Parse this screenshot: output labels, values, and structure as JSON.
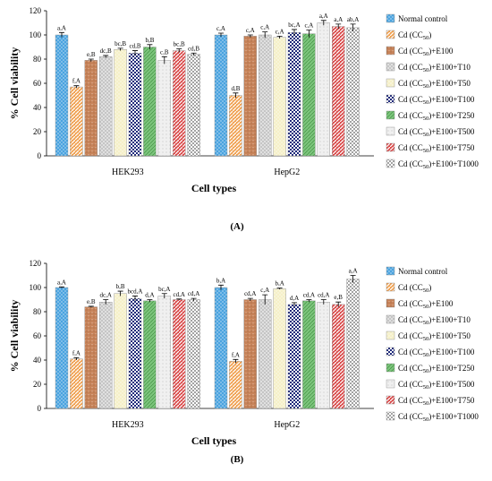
{
  "chart_data": [
    {
      "type": "bar",
      "panel_label": "(A)",
      "xlabel": "Cell types",
      "ylabel": "% Cell viability",
      "ylim": [
        0,
        120
      ],
      "yticks": [
        0,
        20,
        40,
        60,
        80,
        100,
        120
      ],
      "grid": false,
      "legend_position": "right",
      "categories": [
        "HEK293",
        "HepG2"
      ],
      "series": [
        {
          "name": "Normal control",
          "values": [
            100,
            100
          ],
          "errors": [
            2,
            1.5
          ],
          "labels": [
            "a,A",
            "c,A"
          ],
          "color": "#4aa3df",
          "pattern": "dots"
        },
        {
          "name": "Cd (CC50)",
          "values": [
            57,
            50
          ],
          "errors": [
            1,
            2
          ],
          "labels": [
            "f,A",
            "d,B"
          ],
          "color": "#f0a050",
          "pattern": "stripes"
        },
        {
          "name": "Cd (CC50)+E100",
          "values": [
            79,
            99
          ],
          "errors": [
            1,
            1
          ],
          "labels": [
            "e,B",
            "c,A"
          ],
          "color": "#c8845a",
          "pattern": "speckle"
        },
        {
          "name": "Cd (CC50)+E100+T10",
          "values": [
            82,
            100
          ],
          "errors": [
            1,
            2.5
          ],
          "labels": [
            "dc,B",
            "c,A"
          ],
          "color": "#e0e0e0",
          "pattern": "grid"
        },
        {
          "name": "Cd (CC50)+E100+T50",
          "values": [
            88,
            98
          ],
          "errors": [
            1,
            1
          ],
          "labels": [
            "bc,B",
            "c,A"
          ],
          "color": "#f5f0c8",
          "pattern": "dots"
        },
        {
          "name": "Cd (CC50)+E100+T100",
          "values": [
            85,
            102
          ],
          "errors": [
            2,
            2.5
          ],
          "labels": [
            "cd,B",
            "bc,A"
          ],
          "color": "#1f2a7a",
          "pattern": "checker"
        },
        {
          "name": "Cd (CC50)+E100+T250",
          "values": [
            90,
            101
          ],
          "errors": [
            2,
            3
          ],
          "labels": [
            "b,B",
            "c,A"
          ],
          "color": "#7cc47c",
          "pattern": "lines"
        },
        {
          "name": "Cd (CC50)+E100+T500",
          "values": [
            79,
            110
          ],
          "errors": [
            3,
            2
          ],
          "labels": [
            "c,B",
            "a,A"
          ],
          "color": "#f0f0f0",
          "pattern": "sparse"
        },
        {
          "name": "Cd (CC50)+E100+T750",
          "values": [
            87,
            107
          ],
          "errors": [
            1.5,
            2
          ],
          "labels": [
            "bc,B",
            "a,A"
          ],
          "color": "#d94a4a",
          "pattern": "stripes"
        },
        {
          "name": "Cd (CC50)+E100+T1000",
          "values": [
            84,
            106
          ],
          "errors": [
            1,
            3
          ],
          "labels": [
            "cd,B",
            "ab,A"
          ],
          "color": "#ffffff",
          "pattern": "cross"
        }
      ]
    },
    {
      "type": "bar",
      "panel_label": "(B)",
      "xlabel": "Cell types",
      "ylabel": "% Cell viability",
      "ylim": [
        0,
        120
      ],
      "yticks": [
        0,
        20,
        40,
        60,
        80,
        100,
        120
      ],
      "grid": false,
      "legend_position": "right",
      "categories": [
        "HEK293",
        "HepG2"
      ],
      "series": [
        {
          "name": "Normal control",
          "values": [
            100,
            100
          ],
          "errors": [
            0.5,
            2
          ],
          "labels": [
            "a,A",
            "b,A"
          ],
          "color": "#4aa3df",
          "pattern": "dots"
        },
        {
          "name": "Cd (CC50)",
          "values": [
            41,
            39
          ],
          "errors": [
            1,
            1.5
          ],
          "labels": [
            "f,A",
            "f,A"
          ],
          "color": "#f0a050",
          "pattern": "stripes"
        },
        {
          "name": "Cd (CC50)+E100",
          "values": [
            84,
            90
          ],
          "errors": [
            0.5,
            1
          ],
          "labels": [
            "e,B",
            "cd,A"
          ],
          "color": "#c8845a",
          "pattern": "speckle"
        },
        {
          "name": "Cd (CC50)+E100+T10",
          "values": [
            88,
            90
          ],
          "errors": [
            2,
            4
          ],
          "labels": [
            "dc,A",
            "c,A"
          ],
          "color": "#e0e0e0",
          "pattern": "grid"
        },
        {
          "name": "Cd (CC50)+E100+T50",
          "values": [
            95,
            99
          ],
          "errors": [
            2,
            0.5
          ],
          "labels": [
            "b,B",
            "b,A"
          ],
          "color": "#f5f0c8",
          "pattern": "dots"
        },
        {
          "name": "Cd (CC50)+E100+T100",
          "values": [
            91,
            86
          ],
          "errors": [
            2,
            1.5
          ],
          "labels": [
            "bcd,A",
            "d,A"
          ],
          "color": "#1f2a7a",
          "pattern": "checker"
        },
        {
          "name": "Cd (CC50)+E100+T250",
          "values": [
            89,
            89
          ],
          "errors": [
            1,
            1
          ],
          "labels": [
            "d,A",
            "cd,A"
          ],
          "color": "#7cc47c",
          "pattern": "lines"
        },
        {
          "name": "Cd (CC50)+E100+T500",
          "values": [
            93,
            88
          ],
          "errors": [
            2,
            2
          ],
          "labels": [
            "bc,A",
            "cd,A"
          ],
          "color": "#f0f0f0",
          "pattern": "sparse"
        },
        {
          "name": "Cd (CC50)+E100+T750",
          "values": [
            90,
            86
          ],
          "errors": [
            0.5,
            2
          ],
          "labels": [
            "cd,A",
            "e,B"
          ],
          "color": "#d94a4a",
          "pattern": "stripes"
        },
        {
          "name": "Cd (CC50)+E100+T1000",
          "values": [
            90,
            107
          ],
          "errors": [
            1,
            3
          ],
          "labels": [
            "cd,A",
            "a,A"
          ],
          "color": "#ffffff",
          "pattern": "cross"
        }
      ]
    }
  ]
}
